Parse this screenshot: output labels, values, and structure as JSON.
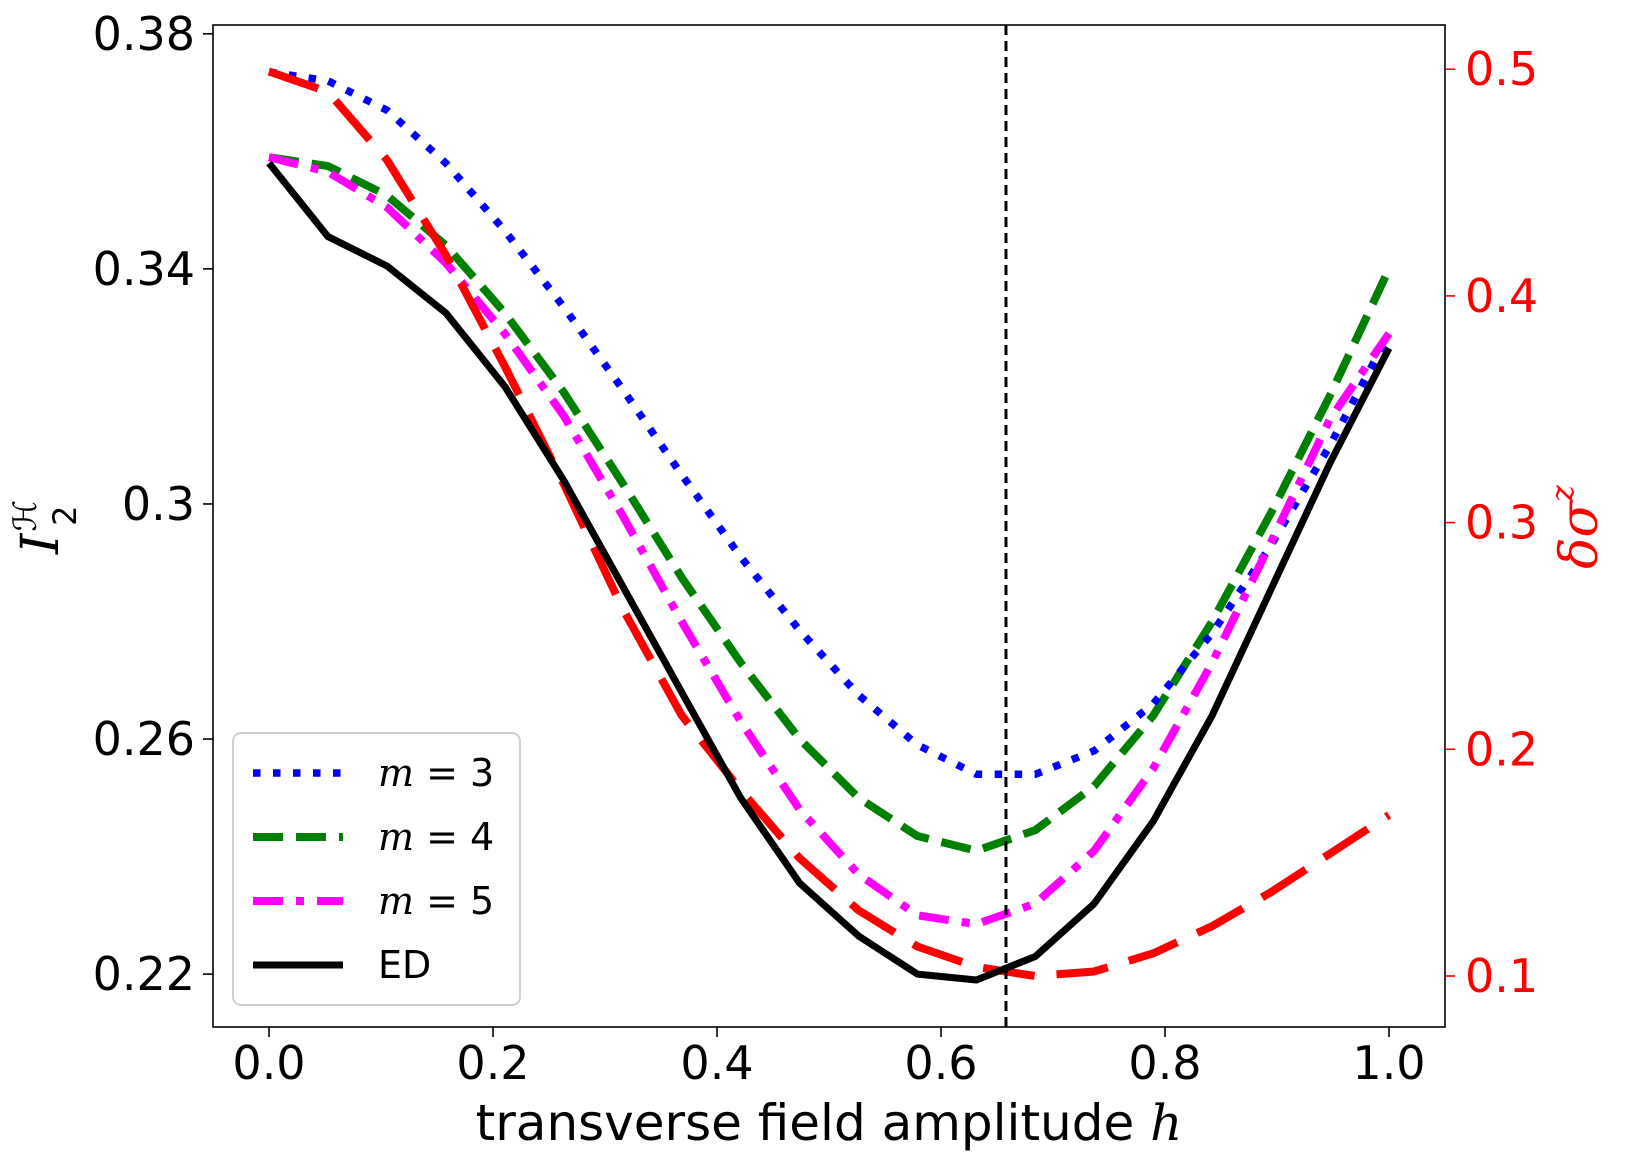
{
  "chart_data": {
    "type": "line",
    "xlabel": "transverse field amplitude",
    "xlabel_var": "h",
    "ylabel_left": "I",
    "ylabel_left_sup": "ℋ",
    "ylabel_left_sub": "2",
    "ylabel_right_prefix": "δσ",
    "ylabel_right_sup": "z",
    "xlim": [
      -0.05,
      1.05
    ],
    "ylim_left": [
      0.211,
      0.3815
    ],
    "ylim_right": [
      0.0775,
      0.5195
    ],
    "x_ticks": [
      "0.0",
      "0.2",
      "0.4",
      "0.6",
      "0.8",
      "1.0"
    ],
    "x_tick_values": [
      0.0,
      0.2,
      0.4,
      0.6,
      0.8,
      1.0
    ],
    "y_left_ticks": [
      "0.22",
      "0.26",
      "0.3",
      "0.34",
      "0.38"
    ],
    "y_left_tick_values": [
      0.22,
      0.26,
      0.3,
      0.34,
      0.38
    ],
    "y_right_ticks": [
      "0.1",
      "0.2",
      "0.3",
      "0.4",
      "0.5"
    ],
    "y_right_tick_values": [
      0.1,
      0.2,
      0.3,
      0.4,
      0.5
    ],
    "vline_x": 0.658,
    "x": [
      0.0,
      0.0526,
      0.1053,
      0.1579,
      0.2105,
      0.2632,
      0.3158,
      0.3684,
      0.4211,
      0.4737,
      0.5263,
      0.5789,
      0.6316,
      0.6842,
      0.7368,
      0.7895,
      0.8421,
      0.8947,
      0.9474,
      1.0
    ],
    "series": [
      {
        "name": "m = 3",
        "legend_var": "m",
        "legend_value": "3",
        "axis": "left",
        "color": "#0000ff",
        "style": "dotted",
        "values": [
          0.3735,
          0.372,
          0.367,
          0.358,
          0.3465,
          0.3335,
          0.3195,
          0.305,
          0.291,
          0.2785,
          0.2675,
          0.259,
          0.254,
          0.254,
          0.258,
          0.266,
          0.278,
          0.293,
          0.31,
          0.329
        ]
      },
      {
        "name": "m = 4",
        "legend_var": "m",
        "legend_value": "4",
        "axis": "left",
        "color": "#008000",
        "style": "dashed",
        "values": [
          0.359,
          0.3575,
          0.3525,
          0.344,
          0.3325,
          0.319,
          0.3035,
          0.2875,
          0.273,
          0.26,
          0.25,
          0.2435,
          0.241,
          0.2445,
          0.252,
          0.264,
          0.28,
          0.2985,
          0.3185,
          0.34
        ]
      },
      {
        "name": "m = 5",
        "legend_var": "m",
        "legend_value": "5",
        "axis": "left",
        "color": "#ff00ff",
        "style": "dashdot",
        "values": [
          0.359,
          0.3565,
          0.3505,
          0.341,
          0.329,
          0.315,
          0.298,
          0.28,
          0.263,
          0.248,
          0.237,
          0.23,
          0.2285,
          0.232,
          0.241,
          0.255,
          0.273,
          0.2935,
          0.3145,
          0.329
        ]
      },
      {
        "name": "ED",
        "legend_var": "",
        "legend_value": "ED",
        "axis": "left",
        "color": "#000000",
        "style": "solid",
        "values": [
          0.358,
          0.3455,
          0.3405,
          0.3325,
          0.32,
          0.304,
          0.286,
          0.268,
          0.25,
          0.2355,
          0.2265,
          0.22,
          0.219,
          0.223,
          0.232,
          0.246,
          0.264,
          0.2855,
          0.307,
          0.3265
        ]
      },
      {
        "name": "δσz",
        "axis": "right",
        "color": "#ff0000",
        "style": "longdash",
        "in_legend": false,
        "values": [
          0.499,
          0.49,
          0.46,
          0.418,
          0.369,
          0.317,
          0.262,
          0.215,
          0.182,
          0.152,
          0.129,
          0.113,
          0.104,
          0.1,
          0.102,
          0.11,
          0.122,
          0.137,
          0.154,
          0.171
        ]
      }
    ]
  }
}
